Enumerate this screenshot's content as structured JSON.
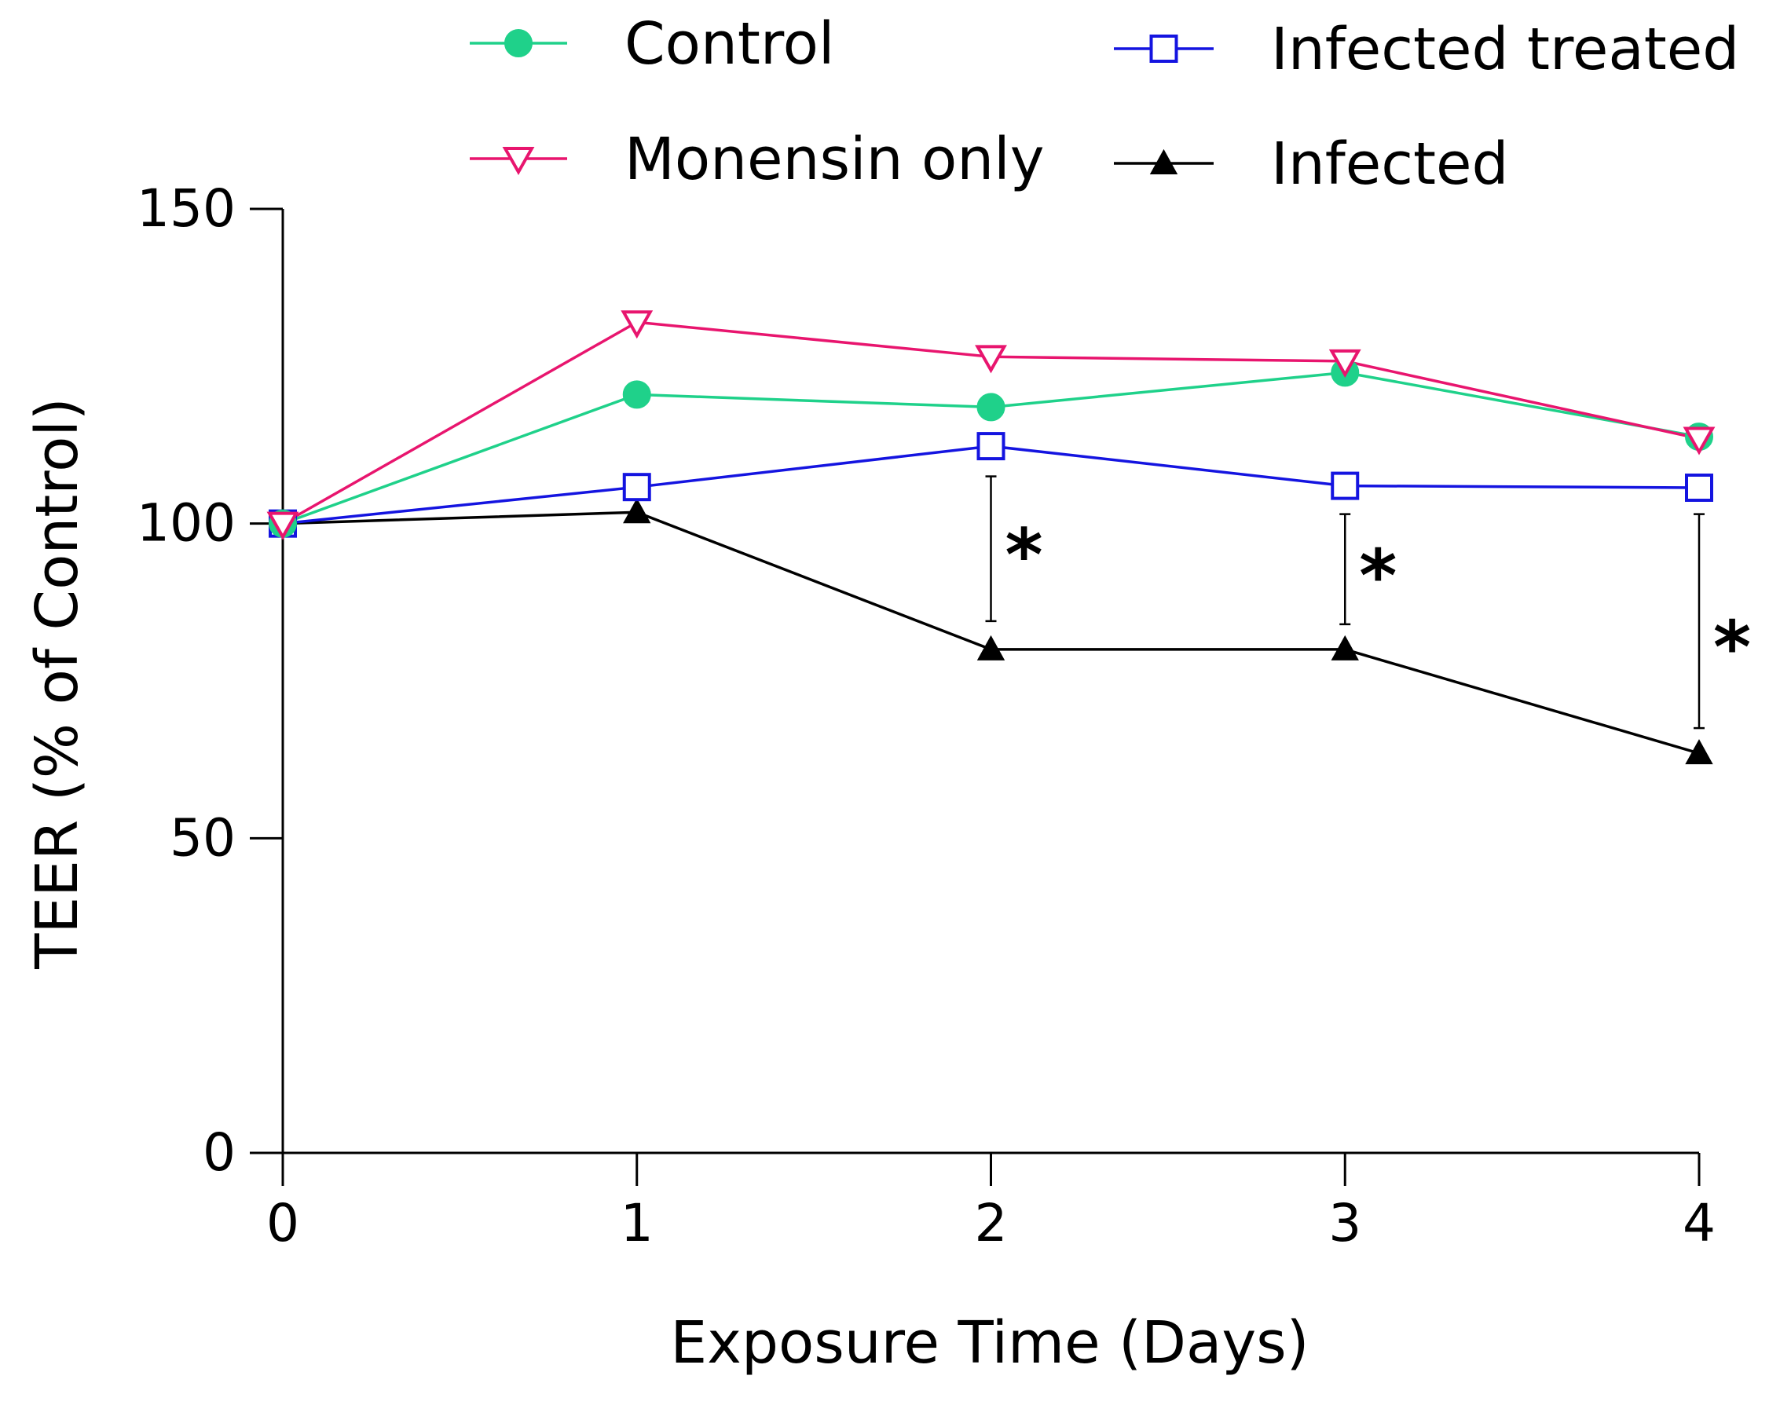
{
  "chart_data": {
    "type": "line",
    "title": "",
    "xlabel": "Exposure Time (Days)",
    "ylabel": "TEER (% of Control)",
    "x": [
      0,
      1,
      2,
      3,
      4
    ],
    "x_tick_labels": [
      "0",
      "1",
      "2",
      "3",
      "4"
    ],
    "y_ticks": [
      0,
      50,
      100,
      150
    ],
    "y_tick_labels": [
      "0",
      "50",
      "100",
      "150"
    ],
    "xlim": [
      0,
      4
    ],
    "ylim": [
      0,
      150
    ],
    "grid": false,
    "legend_position": "top",
    "series": [
      {
        "name": "Control",
        "color": "#1fd18a",
        "marker": "filled-circle",
        "values": [
          100,
          120.5,
          118.5,
          124,
          113.8
        ]
      },
      {
        "name": "Monensin only",
        "color": "#e8156e",
        "marker": "open-triangle-down",
        "values": [
          100,
          132,
          126.5,
          125.8,
          113.5
        ]
      },
      {
        "name": "Infected treated",
        "color": "#1414e0",
        "marker": "open-square",
        "values": [
          100,
          105.8,
          112.3,
          106,
          105.7
        ]
      },
      {
        "name": "Infected",
        "color": "#000000",
        "marker": "filled-triangle-up",
        "values": [
          100,
          101.8,
          80,
          80,
          63.5
        ]
      }
    ],
    "annotations": [
      {
        "x": 2,
        "y_low": 84.5,
        "y_high": 107.5,
        "label": "*"
      },
      {
        "x": 3,
        "y_low": 84,
        "y_high": 101.5,
        "label": "*"
      },
      {
        "x": 4,
        "y_low": 67.5,
        "y_high": 101.5,
        "label": "*"
      }
    ]
  }
}
